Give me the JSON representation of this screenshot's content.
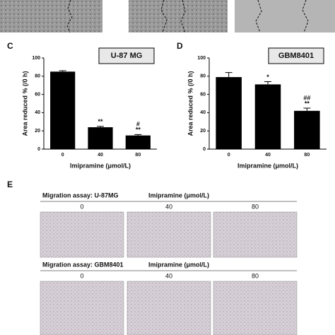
{
  "chart_data": [
    {
      "type": "bar",
      "panel": "C",
      "box_label": "U-87 MG",
      "categories": [
        "0",
        "40",
        "80"
      ],
      "values": [
        85,
        24,
        15
      ],
      "errors": [
        1,
        1,
        1
      ],
      "annotations": [
        null,
        [
          "**"
        ],
        [
          "#",
          "**"
        ]
      ],
      "ylim": [
        0,
        100
      ],
      "yticks": [
        0,
        20,
        40,
        60,
        80,
        100
      ],
      "xlabel": "Imipramine (μmol/L)",
      "ylabel": "Area reduced % (/0 h)",
      "color": "#000000"
    },
    {
      "type": "bar",
      "panel": "D",
      "box_label": "GBM8401",
      "categories": [
        "0",
        "40",
        "80"
      ],
      "values": [
        79,
        71,
        42
      ],
      "errors": [
        5,
        3,
        3
      ],
      "annotations": [
        null,
        [
          "*"
        ],
        [
          "##",
          "**"
        ]
      ],
      "ylim": [
        0,
        100
      ],
      "yticks": [
        0,
        20,
        40,
        60,
        80,
        100
      ],
      "xlabel": "Imipramine (μmol/L)",
      "ylabel": "Area reduced % (/0 h)",
      "color": "#000000"
    }
  ],
  "panel_e": {
    "label": "E",
    "rows": [
      {
        "title": "Migration assay: U-87MG",
        "treatment": "Imipramine (μmol/L)",
        "columns": [
          "0",
          "40",
          "80"
        ]
      },
      {
        "title": "Migration assay: GBM8401",
        "treatment": "Imipramine (μmol/L)",
        "columns": [
          "0",
          "40",
          "80"
        ]
      }
    ]
  }
}
